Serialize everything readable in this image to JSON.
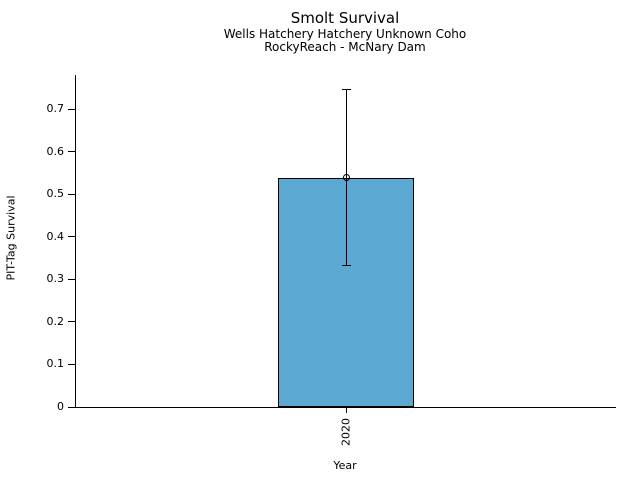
{
  "chart_data": {
    "type": "bar",
    "title": "Smolt Survival",
    "subtitle": [
      "Wells Hatchery Hatchery Unknown Coho",
      "RockyReach - McNary Dam"
    ],
    "xlabel": "Year",
    "ylabel": "PIT-Tag Survival",
    "categories": [
      "2020"
    ],
    "values": [
      0.539
    ],
    "error_bars": [
      {
        "lower": 0.332,
        "upper": 0.746
      }
    ],
    "marker": "open-circle",
    "ylim": [
      0,
      0.78
    ],
    "yticks": [
      {
        "value": 0,
        "label": "0"
      },
      {
        "value": 0.1,
        "label": "0.1"
      },
      {
        "value": 0.2,
        "label": "0.2"
      },
      {
        "value": 0.3,
        "label": "0.3"
      },
      {
        "value": 0.4,
        "label": "0.4"
      },
      {
        "value": 0.5,
        "label": "0.5"
      },
      {
        "value": 0.6,
        "label": "0.6"
      },
      {
        "value": 0.7,
        "label": "0.7"
      }
    ],
    "grid": false,
    "legend": "none",
    "colors": {
      "bar_fill": "#5BA9D3",
      "bar_edge": "#000000",
      "error": "#000000",
      "text": "#000000",
      "background": "#FFFFFF"
    }
  }
}
